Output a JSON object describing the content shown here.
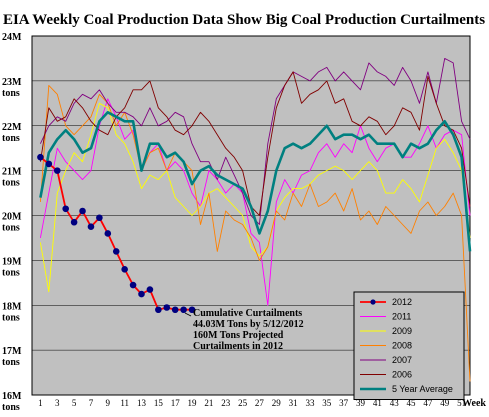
{
  "chart_data": {
    "type": "line",
    "title": "EIA Weekly Coal Production Data Show Big Coal Production Curtailments",
    "xlabel": "Week",
    "ylabel": "",
    "ylim": [
      16,
      24
    ],
    "xlim": [
      0,
      52
    ],
    "y_ticks": [
      {
        "value": 24,
        "top": "24M",
        "bottom": ""
      },
      {
        "value": 23,
        "top": "23M",
        "bottom": "tons"
      },
      {
        "value": 22,
        "top": "22M",
        "bottom": "tons"
      },
      {
        "value": 21,
        "top": "21M",
        "bottom": "tons"
      },
      {
        "value": 20,
        "top": "20M",
        "bottom": "tons"
      },
      {
        "value": 19,
        "top": "19M",
        "bottom": "tons"
      },
      {
        "value": 18,
        "top": "18M",
        "bottom": "tons"
      },
      {
        "value": 17,
        "top": "17M",
        "bottom": "tons"
      },
      {
        "value": 16,
        "top": "16M",
        "bottom": "tons"
      }
    ],
    "x_ticks": [
      1,
      3,
      5,
      7,
      9,
      11,
      13,
      15,
      17,
      19,
      21,
      23,
      25,
      27,
      29,
      31,
      33,
      35,
      37,
      39,
      41,
      43,
      45,
      47,
      49,
      51
    ],
    "grid": true,
    "plot_background": "#c0c0c0",
    "legend_position": "bottom-right",
    "annotation": [
      "Cumulative Curtailments",
      "44.03M Tons by 5/12/2012",
      "160M Tons Projected",
      "Curtailments in 2012"
    ],
    "series": [
      {
        "name": "2012",
        "color": "#ff0000",
        "marker_color": "#000080",
        "values": [
          21.3,
          21.15,
          21.0,
          20.15,
          19.85,
          20.1,
          19.75,
          19.95,
          19.6,
          19.2,
          18.8,
          18.45,
          18.25,
          18.35,
          17.9,
          17.95,
          17.9,
          17.9,
          17.9
        ]
      },
      {
        "name": "2011",
        "color": "#ff00ff",
        "values": [
          19.5,
          20.5,
          21.5,
          21.2,
          21.0,
          20.8,
          21.0,
          22.0,
          22.6,
          22.2,
          21.7,
          21.9,
          21.0,
          21.4,
          21.6,
          21.0,
          21.2,
          21.0,
          20.5,
          20.2,
          21.0,
          20.8,
          20.5,
          20.7,
          20.5,
          19.6,
          19.4,
          18.0,
          20.3,
          20.8,
          20.5,
          20.9,
          21.0,
          21.4,
          21.6,
          21.3,
          21.6,
          21.4,
          22.0,
          21.5,
          21.2,
          21.5,
          21.6,
          21.3,
          21.3,
          21.6,
          22.0,
          21.5,
          21.8,
          21.9,
          21.8,
          20.0
        ]
      },
      {
        "name": "2009",
        "color": "#ffff00",
        "values": [
          19.4,
          18.3,
          20.5,
          21.0,
          21.4,
          21.2,
          21.8,
          22.5,
          22.4,
          21.8,
          21.6,
          21.2,
          20.6,
          20.9,
          20.8,
          21.0,
          20.4,
          20.2,
          20.0,
          20.2,
          20.5,
          20.6,
          20.4,
          20.2,
          20.0,
          19.3,
          19.1,
          19.3,
          20.1,
          20.4,
          20.6,
          20.6,
          20.7,
          20.9,
          21.0,
          21.1,
          21.0,
          20.8,
          21.0,
          21.2,
          21.0,
          20.5,
          20.5,
          20.8,
          20.6,
          20.3,
          20.9,
          21.5,
          21.7,
          21.4,
          21.0,
          19.5
        ]
      },
      {
        "name": "2008",
        "color": "#ff8000",
        "values": [
          20.3,
          22.9,
          22.7,
          22.0,
          21.8,
          22.0,
          22.2,
          22.7,
          22.5,
          22.0,
          22.3,
          21.8,
          21.0,
          21.4,
          21.5,
          21.0,
          21.4,
          21.2,
          21.0,
          19.8,
          20.5,
          19.2,
          20.1,
          19.9,
          19.8,
          19.5,
          19.0,
          19.3,
          20.1,
          19.9,
          20.5,
          20.2,
          20.7,
          20.2,
          20.3,
          20.5,
          20.1,
          20.6,
          19.9,
          20.1,
          19.8,
          20.2,
          20.0,
          19.8,
          19.6,
          20.1,
          20.3,
          20.0,
          20.2,
          20.5,
          20.0,
          16.3
        ]
      },
      {
        "name": "2007",
        "color": "#800080",
        "values": [
          21.6,
          22.0,
          22.2,
          22.1,
          22.5,
          22.7,
          22.6,
          22.8,
          22.5,
          22.3,
          22.3,
          22.2,
          22.0,
          22.4,
          22.0,
          22.1,
          22.3,
          22.2,
          21.6,
          21.2,
          21.2,
          20.8,
          21.3,
          20.9,
          20.5,
          20.0,
          19.8,
          21.6,
          22.6,
          22.9,
          23.2,
          23.1,
          23.0,
          23.2,
          23.3,
          23.0,
          23.2,
          23.0,
          22.8,
          23.4,
          23.2,
          23.1,
          22.9,
          23.3,
          23.0,
          22.5,
          23.2,
          22.5,
          23.5,
          23.4,
          22.1,
          21.7
        ]
      },
      {
        "name": "2006",
        "color": "#800000",
        "values": [
          21.2,
          22.4,
          22.1,
          22.2,
          22.6,
          22.4,
          22.1,
          21.9,
          21.8,
          22.2,
          22.4,
          22.8,
          22.8,
          23.0,
          22.4,
          22.2,
          21.9,
          21.8,
          22.0,
          22.3,
          22.1,
          21.8,
          21.5,
          21.3,
          21.0,
          20.2,
          20.0,
          21.3,
          22.4,
          22.9,
          23.2,
          22.5,
          22.7,
          22.8,
          23.0,
          22.5,
          22.6,
          22.1,
          22.0,
          22.2,
          22.1,
          21.8,
          22.0,
          22.4,
          22.3,
          21.9,
          23.1,
          22.5,
          22.0,
          21.9,
          21.5,
          20.2
        ]
      },
      {
        "name": "5 Year Average",
        "color": "#008080",
        "values": [
          20.4,
          21.4,
          21.7,
          21.9,
          21.7,
          21.4,
          21.5,
          22.1,
          22.3,
          22.2,
          22.1,
          22.1,
          21.0,
          21.6,
          21.6,
          21.3,
          21.4,
          21.2,
          20.7,
          21.0,
          21.1,
          20.9,
          20.8,
          20.7,
          20.6,
          20.2,
          19.6,
          20.1,
          21.0,
          21.5,
          21.6,
          21.5,
          21.6,
          21.8,
          22.0,
          21.7,
          21.8,
          21.8,
          21.7,
          21.8,
          21.6,
          21.6,
          21.6,
          21.3,
          21.6,
          21.5,
          21.6,
          21.9,
          22.1,
          21.8,
          21.3,
          19.2
        ]
      }
    ]
  }
}
